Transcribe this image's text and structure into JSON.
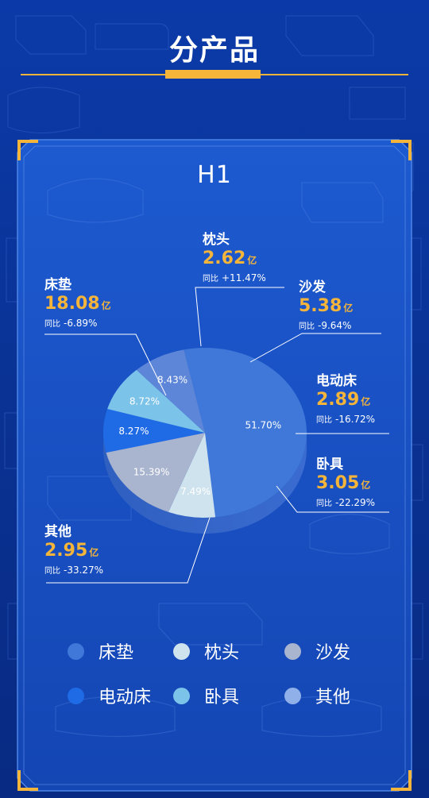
{
  "header": {
    "title": "分产品"
  },
  "chart_data": {
    "type": "pie",
    "title": "H1",
    "slices": [
      {
        "name": "床垫",
        "percent": 51.7,
        "percent_label": "51.70%",
        "value": 18.08,
        "value_label": "18.08",
        "unit": "亿",
        "yoy_label": "同比",
        "yoy": "-6.89%",
        "color": "#3f78d8"
      },
      {
        "name": "枕头",
        "percent": 7.49,
        "percent_label": "7.49%",
        "value": 2.62,
        "value_label": "2.62",
        "unit": "亿",
        "yoy_label": "同比",
        "yoy": "+11.47%",
        "color": "#cfe3ee"
      },
      {
        "name": "沙发",
        "percent": 15.39,
        "percent_label": "15.39%",
        "value": 5.38,
        "value_label": "5.38",
        "unit": "亿",
        "yoy_label": "同比",
        "yoy": "-9.64%",
        "color": "#a9b4cf"
      },
      {
        "name": "电动床",
        "percent": 8.27,
        "percent_label": "8.27%",
        "value": 2.89,
        "value_label": "2.89",
        "unit": "亿",
        "yoy_label": "同比",
        "yoy": "-16.72%",
        "color": "#1f6be6"
      },
      {
        "name": "卧具",
        "percent": 8.72,
        "percent_label": "8.72%",
        "value": 3.05,
        "value_label": "3.05",
        "unit": "亿",
        "yoy_label": "同比",
        "yoy": "-22.29%",
        "color": "#7cc3ea"
      },
      {
        "name": "其他",
        "percent": 8.43,
        "percent_label": "8.43%",
        "value": 2.95,
        "value_label": "2.95",
        "unit": "亿",
        "yoy_label": "同比",
        "yoy": "-33.27%",
        "color": "#5d86d8"
      }
    ],
    "legend": [
      "床垫",
      "枕头",
      "沙发",
      "电动床",
      "卧具",
      "其他"
    ],
    "legend_placement": "bottom"
  },
  "colors": {
    "background": "#0b3aa8",
    "accent": "#f5b53a",
    "panel": "#1a54c4"
  }
}
